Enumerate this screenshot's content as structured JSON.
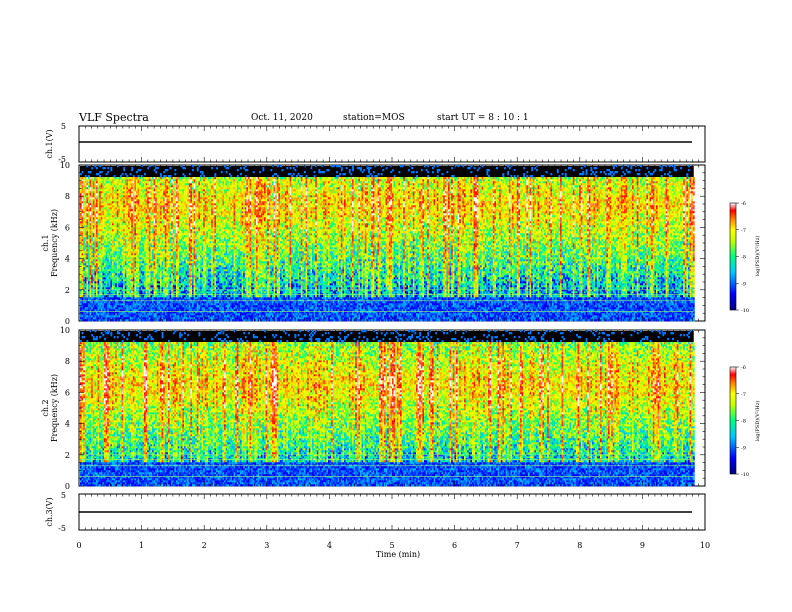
{
  "header": {
    "title": "VLF Spectra",
    "date": "Oct. 11, 2020",
    "station": "station=MOS",
    "start": "start UT = 8 : 10 : 1"
  },
  "chart_data": [
    {
      "type": "line",
      "panel": "ch1-waveform",
      "ylabel": "ch.1(V)",
      "ylim": [
        -5,
        5
      ],
      "yticks": [
        5,
        -5
      ],
      "x": [
        0,
        9.8
      ],
      "values": [
        0,
        0
      ]
    },
    {
      "type": "heatmap",
      "panel": "ch1-spectrogram",
      "ylabel_top": "ch.1",
      "ylabel": "Frequency (kHz)",
      "ylim": [
        0,
        10
      ],
      "yticks": [
        0,
        2,
        4,
        6,
        8,
        10
      ],
      "colorbar": {
        "label": "log(PSD)(V²/Hz)",
        "range": [
          -10,
          -6
        ],
        "ticks": [
          "-6",
          "-7",
          "-8",
          "-9",
          "-10"
        ]
      }
    },
    {
      "type": "heatmap",
      "panel": "ch2-spectrogram",
      "ylabel_top": "ch.2",
      "ylabel": "Frequency (kHz)",
      "ylim": [
        0,
        10
      ],
      "yticks": [
        0,
        2,
        4,
        6,
        8,
        10
      ],
      "colorbar": {
        "label": "log(PSD)(V²/Hz)",
        "range": [
          -10,
          -6
        ],
        "ticks": [
          "-6",
          "-7",
          "-8",
          "-9",
          "-10"
        ]
      }
    },
    {
      "type": "line",
      "panel": "ch3-waveform",
      "ylabel": "ch.3(V)",
      "ylim": [
        -5,
        5
      ],
      "yticks": [
        5,
        -5
      ],
      "x": [
        0,
        9.8
      ],
      "values": [
        0,
        0
      ]
    }
  ],
  "xaxis": {
    "label": "Time (min)",
    "range": [
      0,
      10
    ],
    "ticks": [
      0,
      1,
      2,
      3,
      4,
      5,
      6,
      7,
      8,
      9,
      10
    ]
  },
  "colors": {
    "background": "#000000",
    "colormap": [
      "#00007f",
      "#0000ff",
      "#00c8ff",
      "#00ff80",
      "#c8ff00",
      "#ffff00",
      "#ff8000",
      "#ff0000",
      "#ffffff"
    ]
  }
}
